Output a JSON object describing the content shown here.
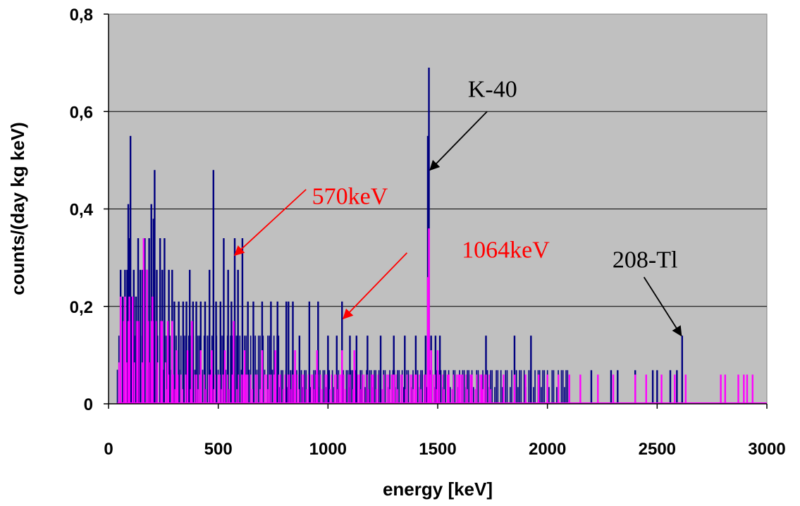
{
  "chart_data": {
    "type": "line",
    "title": "",
    "xlabel": "energy [keV]",
    "ylabel": "counts/(day kg keV)",
    "xlim": [
      0,
      3000
    ],
    "ylim": [
      0,
      0.8
    ],
    "xticks": [
      "0",
      "500",
      "1000",
      "1500",
      "2000",
      "2500",
      "3000"
    ],
    "yticks": [
      "0",
      "0,2",
      "0,4",
      "0,6",
      "0,8"
    ],
    "grid": "horizontal",
    "background": "#c0c0c0",
    "series": [
      {
        "color": "#00007f",
        "baseline_segments": [
          {
            "x_start": 40,
            "x_end": 780,
            "y": 0.14
          },
          {
            "x_start": 780,
            "x_end": 1760,
            "y": 0.069
          },
          {
            "x_start": 1760,
            "x_end": 2100,
            "y": 0.069
          }
        ],
        "peaks": [
          [
            55,
            0.275
          ],
          [
            65,
            0.22
          ],
          [
            75,
            0.275
          ],
          [
            85,
            0.275
          ],
          [
            90,
            0.41
          ],
          [
            95,
            0.34
          ],
          [
            100,
            0.55
          ],
          [
            105,
            0.22
          ],
          [
            115,
            0.275
          ],
          [
            125,
            0.22
          ],
          [
            135,
            0.34
          ],
          [
            145,
            0.275
          ],
          [
            155,
            0.275
          ],
          [
            165,
            0.34
          ],
          [
            175,
            0.275
          ],
          [
            185,
            0.34
          ],
          [
            195,
            0.41
          ],
          [
            205,
            0.38
          ],
          [
            210,
            0.48
          ],
          [
            220,
            0.275
          ],
          [
            235,
            0.34
          ],
          [
            245,
            0.275
          ],
          [
            255,
            0.34
          ],
          [
            275,
            0.275
          ],
          [
            290,
            0.275
          ],
          [
            300,
            0.21
          ],
          [
            320,
            0.21
          ],
          [
            340,
            0.21
          ],
          [
            355,
            0.21
          ],
          [
            370,
            0.275
          ],
          [
            385,
            0.21
          ],
          [
            400,
            0.21
          ],
          [
            420,
            0.21
          ],
          [
            440,
            0.21
          ],
          [
            460,
            0.275
          ],
          [
            478,
            0.48
          ],
          [
            490,
            0.21
          ],
          [
            510,
            0.21
          ],
          [
            525,
            0.34
          ],
          [
            545,
            0.275
          ],
          [
            560,
            0.21
          ],
          [
            575,
            0.34
          ],
          [
            590,
            0.275
          ],
          [
            610,
            0.34
          ],
          [
            635,
            0.21
          ],
          [
            660,
            0.21
          ],
          [
            700,
            0.21
          ],
          [
            740,
            0.21
          ],
          [
            770,
            0.21
          ],
          [
            810,
            0.21
          ],
          [
            820,
            0.21
          ],
          [
            840,
            0.21
          ],
          [
            870,
            0.14
          ],
          [
            915,
            0.21
          ],
          [
            955,
            0.21
          ],
          [
            1000,
            0.14
          ],
          [
            1040,
            0.14
          ],
          [
            1064,
            0.21
          ],
          [
            1100,
            0.14
          ],
          [
            1130,
            0.14
          ],
          [
            1180,
            0.14
          ],
          [
            1240,
            0.14
          ],
          [
            1300,
            0.14
          ],
          [
            1350,
            0.14
          ],
          [
            1400,
            0.14
          ],
          [
            1445,
            0.14
          ],
          [
            1455,
            0.55
          ],
          [
            1460,
            0.69
          ],
          [
            1470,
            0.14
          ],
          [
            1490,
            0.14
          ],
          [
            1510,
            0.14
          ],
          [
            1720,
            0.14
          ],
          [
            1850,
            0.14
          ],
          [
            1925,
            0.14
          ],
          [
            2200,
            0.069
          ],
          [
            2290,
            0.069
          ],
          [
            2320,
            0.069
          ],
          [
            2400,
            0.069
          ],
          [
            2480,
            0.069
          ],
          [
            2500,
            0.069
          ],
          [
            2560,
            0.069
          ],
          [
            2590,
            0.069
          ],
          [
            2614,
            0.14
          ]
        ]
      },
      {
        "color": "#ff00ff",
        "baseline_segments": [
          {
            "x_start": 40,
            "x_end": 260,
            "y": 0.17
          },
          {
            "x_start": 260,
            "x_end": 1240,
            "y": 0.06
          },
          {
            "x_start": 1240,
            "x_end": 1750,
            "y": 0.06
          }
        ],
        "peaks": [
          [
            55,
            0.22
          ],
          [
            75,
            0.22
          ],
          [
            95,
            0.22
          ],
          [
            110,
            0.22
          ],
          [
            130,
            0.17
          ],
          [
            160,
            0.34
          ],
          [
            175,
            0.275
          ],
          [
            200,
            0.22
          ],
          [
            240,
            0.17
          ],
          [
            270,
            0.17
          ],
          [
            290,
            0.17
          ],
          [
            310,
            0.11
          ],
          [
            360,
            0.11
          ],
          [
            380,
            0.17
          ],
          [
            420,
            0.11
          ],
          [
            470,
            0.11
          ],
          [
            530,
            0.11
          ],
          [
            570,
            0.17
          ],
          [
            620,
            0.11
          ],
          [
            700,
            0.11
          ],
          [
            760,
            0.11
          ],
          [
            850,
            0.11
          ],
          [
            950,
            0.11
          ],
          [
            1064,
            0.11
          ],
          [
            1120,
            0.11
          ],
          [
            1200,
            0.06
          ],
          [
            1300,
            0.06
          ],
          [
            1400,
            0.06
          ],
          [
            1455,
            0.26
          ],
          [
            1460,
            0.36
          ],
          [
            1470,
            0.11
          ],
          [
            1500,
            0.11
          ],
          [
            1550,
            0.06
          ],
          [
            1600,
            0.06
          ],
          [
            1650,
            0.06
          ],
          [
            1700,
            0.06
          ],
          [
            1800,
            0.06
          ],
          [
            1850,
            0.06
          ],
          [
            1900,
            0.06
          ],
          [
            1960,
            0.06
          ],
          [
            2000,
            0.06
          ],
          [
            2050,
            0.06
          ],
          [
            2100,
            0.06
          ],
          [
            2150,
            0.06
          ],
          [
            2230,
            0.06
          ],
          [
            2300,
            0.06
          ],
          [
            2400,
            0.06
          ],
          [
            2450,
            0.06
          ],
          [
            2520,
            0.06
          ],
          [
            2580,
            0.06
          ],
          [
            2630,
            0.06
          ],
          [
            2790,
            0.06
          ],
          [
            2810,
            0.06
          ],
          [
            2870,
            0.06
          ],
          [
            2895,
            0.06
          ],
          [
            2910,
            0.06
          ],
          [
            2935,
            0.06
          ]
        ]
      }
    ],
    "annotations": [
      {
        "text": "K-40",
        "color": "#000000",
        "x": 1750,
        "y": 0.63,
        "arrow_from": [
          1725,
          0.6
        ],
        "arrow_to": [
          1465,
          0.48
        ]
      },
      {
        "text": "570keV",
        "color": "#ff0000",
        "x": 1100,
        "y": 0.41,
        "arrow_from": [
          900,
          0.44
        ],
        "arrow_to": [
          575,
          0.305
        ]
      },
      {
        "text": "1064keV",
        "color": "#ff0000",
        "x": 1810,
        "y": 0.3,
        "arrow_from": [
          1360,
          0.31
        ],
        "arrow_to": [
          1070,
          0.175
        ]
      },
      {
        "text": "208-Tl",
        "color": "#000000",
        "x": 2445,
        "y": 0.28,
        "arrow_from": [
          2440,
          0.26
        ],
        "arrow_to": [
          2610,
          0.14
        ]
      }
    ]
  }
}
